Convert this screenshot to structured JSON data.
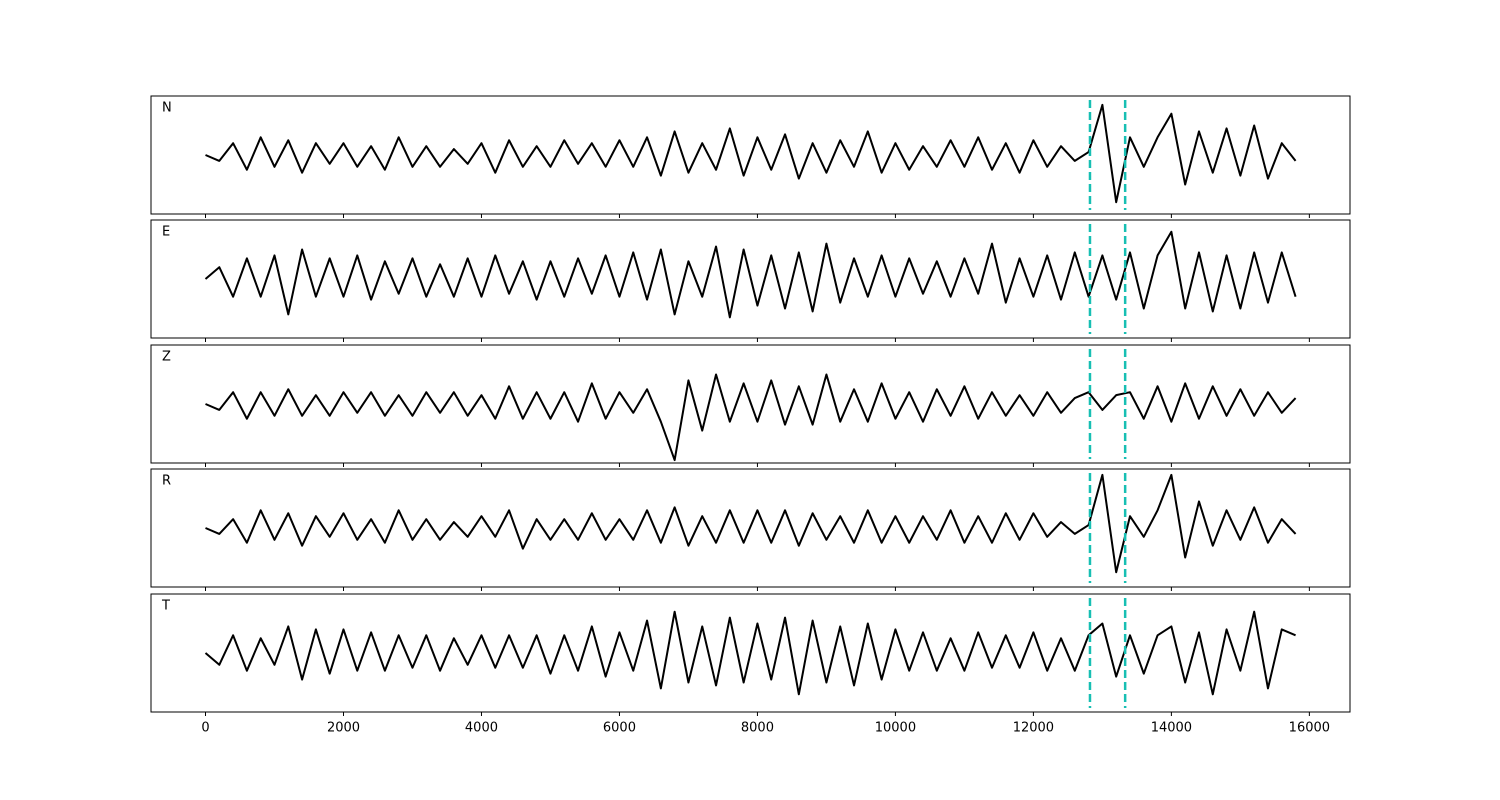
{
  "chart_data": {
    "type": "line",
    "x": [
      0,
      200,
      400,
      600,
      800,
      1000,
      1200,
      1400,
      1600,
      1800,
      2000,
      2200,
      2400,
      2600,
      2800,
      3000,
      3200,
      3400,
      3600,
      3800,
      4000,
      4200,
      4400,
      4600,
      4800,
      5000,
      5200,
      5400,
      5600,
      5800,
      6000,
      6200,
      6400,
      6600,
      6800,
      7000,
      7200,
      7400,
      7600,
      7800,
      8000,
      8200,
      8400,
      8600,
      8800,
      9000,
      9200,
      9400,
      9600,
      9800,
      10000,
      10200,
      10400,
      10600,
      10800,
      11000,
      11200,
      11400,
      11600,
      11800,
      12000,
      12200,
      12400,
      12600,
      12800,
      13000,
      13200,
      13400,
      13600,
      13800,
      14000,
      14200,
      14400,
      14600,
      14800,
      15000,
      15200,
      15400,
      15600,
      15800
    ],
    "series": [
      {
        "name": "N",
        "color": "#000000",
        "values": [
          0,
          -0.1,
          0.2,
          -0.25,
          0.3,
          -0.2,
          0.25,
          -0.3,
          0.2,
          -0.15,
          0.2,
          -0.2,
          0.15,
          -0.25,
          0.3,
          -0.2,
          0.15,
          -0.2,
          0.1,
          -0.15,
          0.2,
          -0.3,
          0.25,
          -0.2,
          0.15,
          -0.2,
          0.25,
          -0.15,
          0.2,
          -0.2,
          0.25,
          -0.2,
          0.3,
          -0.35,
          0.4,
          -0.3,
          0.2,
          -0.25,
          0.45,
          -0.35,
          0.3,
          -0.25,
          0.35,
          -0.4,
          0.2,
          -0.3,
          0.25,
          -0.2,
          0.4,
          -0.3,
          0.2,
          -0.25,
          0.15,
          -0.2,
          0.25,
          -0.2,
          0.3,
          -0.25,
          0.2,
          -0.3,
          0.25,
          -0.2,
          0.15,
          -0.1,
          0.05,
          0.85,
          -0.8,
          0.3,
          -0.2,
          0.3,
          0.7,
          -0.5,
          0.4,
          -0.3,
          0.45,
          -0.35,
          0.5,
          -0.4,
          0.2,
          -0.1
        ]
      },
      {
        "name": "E",
        "color": "#000000",
        "values": [
          0,
          0.2,
          -0.3,
          0.35,
          -0.3,
          0.4,
          -0.6,
          0.5,
          -0.3,
          0.35,
          -0.3,
          0.4,
          -0.35,
          0.3,
          -0.25,
          0.35,
          -0.3,
          0.25,
          -0.3,
          0.35,
          -0.3,
          0.4,
          -0.25,
          0.3,
          -0.35,
          0.3,
          -0.3,
          0.35,
          -0.25,
          0.4,
          -0.3,
          0.45,
          -0.35,
          0.5,
          -0.6,
          0.3,
          -0.3,
          0.55,
          -0.65,
          0.5,
          -0.45,
          0.4,
          -0.5,
          0.45,
          -0.55,
          0.6,
          -0.4,
          0.35,
          -0.3,
          0.4,
          -0.3,
          0.35,
          -0.25,
          0.3,
          -0.3,
          0.35,
          -0.25,
          0.6,
          -0.4,
          0.35,
          -0.3,
          0.4,
          -0.35,
          0.45,
          -0.3,
          0.4,
          -0.35,
          0.45,
          -0.5,
          0.4,
          0.8,
          -0.5,
          0.45,
          -0.55,
          0.4,
          -0.5,
          0.45,
          -0.4,
          0.45,
          -0.3
        ]
      },
      {
        "name": "Z",
        "color": "#000000",
        "values": [
          0,
          -0.1,
          0.2,
          -0.25,
          0.2,
          -0.2,
          0.25,
          -0.2,
          0.15,
          -0.2,
          0.2,
          -0.15,
          0.2,
          -0.2,
          0.15,
          -0.2,
          0.2,
          -0.15,
          0.2,
          -0.2,
          0.15,
          -0.25,
          0.3,
          -0.25,
          0.2,
          -0.25,
          0.2,
          -0.3,
          0.35,
          -0.25,
          0.2,
          -0.15,
          0.25,
          -0.3,
          -0.95,
          0.4,
          -0.45,
          0.5,
          -0.3,
          0.35,
          -0.3,
          0.4,
          -0.35,
          0.3,
          -0.35,
          0.5,
          -0.3,
          0.25,
          -0.3,
          0.35,
          -0.25,
          0.2,
          -0.3,
          0.25,
          -0.2,
          0.3,
          -0.25,
          0.2,
          -0.2,
          0.15,
          -0.2,
          0.2,
          -0.15,
          0.1,
          0.2,
          -0.1,
          0.15,
          0.2,
          -0.25,
          0.3,
          -0.3,
          0.35,
          -0.25,
          0.3,
          -0.2,
          0.25,
          -0.2,
          0.2,
          -0.15,
          0.1
        ]
      },
      {
        "name": "R",
        "color": "#000000",
        "values": [
          0,
          -0.1,
          0.15,
          -0.25,
          0.3,
          -0.2,
          0.25,
          -0.3,
          0.2,
          -0.15,
          0.25,
          -0.2,
          0.15,
          -0.25,
          0.3,
          -0.2,
          0.15,
          -0.2,
          0.1,
          -0.15,
          0.2,
          -0.15,
          0.3,
          -0.35,
          0.15,
          -0.2,
          0.15,
          -0.2,
          0.25,
          -0.2,
          0.15,
          -0.2,
          0.3,
          -0.25,
          0.35,
          -0.3,
          0.2,
          -0.25,
          0.3,
          -0.25,
          0.3,
          -0.25,
          0.3,
          -0.3,
          0.25,
          -0.2,
          0.2,
          -0.25,
          0.3,
          -0.25,
          0.2,
          -0.25,
          0.2,
          -0.2,
          0.3,
          -0.25,
          0.2,
          -0.25,
          0.25,
          -0.2,
          0.25,
          -0.15,
          0.1,
          -0.1,
          0.05,
          0.9,
          -0.75,
          0.2,
          -0.15,
          0.3,
          0.9,
          -0.5,
          0.45,
          -0.3,
          0.3,
          -0.2,
          0.35,
          -0.25,
          0.15,
          -0.1
        ]
      },
      {
        "name": "T",
        "color": "#000000",
        "values": [
          0,
          -0.2,
          0.3,
          -0.3,
          0.25,
          -0.2,
          0.45,
          -0.45,
          0.4,
          -0.35,
          0.4,
          -0.3,
          0.35,
          -0.3,
          0.3,
          -0.25,
          0.3,
          -0.3,
          0.25,
          -0.2,
          0.3,
          -0.25,
          0.3,
          -0.25,
          0.3,
          -0.35,
          0.3,
          -0.3,
          0.45,
          -0.4,
          0.35,
          -0.3,
          0.55,
          -0.6,
          0.7,
          -0.5,
          0.45,
          -0.55,
          0.6,
          -0.5,
          0.5,
          -0.45,
          0.6,
          -0.7,
          0.55,
          -0.5,
          0.45,
          -0.55,
          0.5,
          -0.45,
          0.4,
          -0.3,
          0.35,
          -0.3,
          0.25,
          -0.3,
          0.35,
          -0.25,
          0.3,
          -0.25,
          0.35,
          -0.3,
          0.25,
          -0.3,
          0.3,
          0.5,
          -0.4,
          0.3,
          -0.35,
          0.3,
          0.45,
          -0.5,
          0.35,
          -0.7,
          0.4,
          -0.3,
          0.7,
          -0.6,
          0.4,
          0.3
        ]
      }
    ],
    "vlines": {
      "values": [
        12820,
        13330
      ],
      "color": "#17bfb3"
    },
    "xlim": [
      -790,
      16589
    ],
    "xticks": [
      0,
      2000,
      4000,
      6000,
      8000,
      10000,
      12000,
      14000,
      16000
    ],
    "ylim": [
      -1,
      1
    ]
  }
}
